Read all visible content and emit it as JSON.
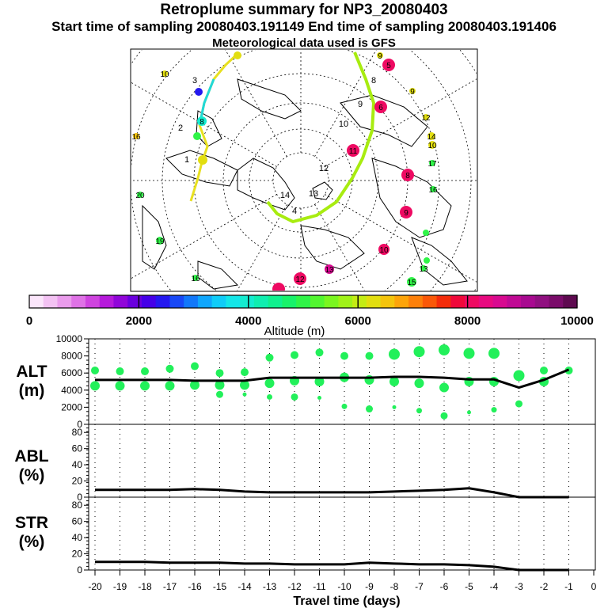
{
  "header": {
    "title": "Retroplume summary for NP3_20080403",
    "subtitle": "Start time of sampling 20080403.191149     End time of sampling 20080403.191406",
    "meteo": "Meteorological data used is GFS"
  },
  "colorbar": {
    "label": "Altitude (m)",
    "tick_labels": [
      "0",
      "2000",
      "4000",
      "6000",
      "8000",
      "10000"
    ],
    "range": [
      0,
      10000
    ],
    "colors": [
      "#fbe6fb",
      "#f3c2f3",
      "#ea9cec",
      "#df72e6",
      "#cf44df",
      "#b61adb",
      "#9106d9",
      "#6a00de",
      "#4500e8",
      "#2418f0",
      "#1848f6",
      "#1278fa",
      "#10a6fc",
      "#10ccf8",
      "#14e6e8",
      "#14ecd0",
      "#10eeb0",
      "#10f08e",
      "#18f26a",
      "#30f448",
      "#52f630",
      "#7af620",
      "#a0f218",
      "#c4ec14",
      "#e2de10",
      "#f4c40c",
      "#fca40a",
      "#fc800a",
      "#fa5808",
      "#f42c0a",
      "#f0083a",
      "#ee0a62",
      "#e80a80",
      "#d80a90",
      "#c00a94",
      "#a80a90",
      "#901080",
      "#7a0c6a",
      "#5e0a50"
    ]
  },
  "map": {
    "day_labels": [
      "1",
      "2",
      "3",
      "4",
      "5",
      "6",
      "7",
      "8",
      "9",
      "10",
      "11",
      "12",
      "13",
      "14",
      "15",
      "16",
      "17",
      "18",
      "19",
      "20"
    ],
    "trajectory_days": [
      "1",
      "2",
      "3",
      "4",
      "5",
      "6",
      "8",
      "9",
      "10",
      "11",
      "12",
      "13",
      "14"
    ]
  },
  "panels": {
    "alt": {
      "label": "ALT",
      "unit": "(m)",
      "ylim": [
        0,
        10000
      ],
      "yticks": [
        "0",
        "2000",
        "4000",
        "6000",
        "8000",
        "10000"
      ]
    },
    "abl": {
      "label": "ABL",
      "unit": "(%)",
      "ylim": [
        0,
        90
      ],
      "yticks": [
        "0",
        "20",
        "40",
        "60",
        "80"
      ]
    },
    "str": {
      "label": "STR",
      "unit": "(%)",
      "ylim": [
        0,
        90
      ],
      "yticks": [
        "0",
        "20",
        "40",
        "60",
        "80"
      ]
    }
  },
  "xaxis": {
    "label": "Travel time (days)",
    "ticks": [
      "-20",
      "-19",
      "-18",
      "-17",
      "-16",
      "-15",
      "-14",
      "-13",
      "-12",
      "-11",
      "-10",
      "-9",
      "-8",
      "-7",
      "-6",
      "-5",
      "-4",
      "-3",
      "-2",
      "-1",
      "0"
    ]
  },
  "chart_data": {
    "type": "line",
    "title": "Retroplume summary for NP3_20080403",
    "x": [
      -20,
      -19,
      -18,
      -17,
      -16,
      -15,
      -14,
      -13,
      -12,
      -11,
      -10,
      -9,
      -8,
      -7,
      -6,
      -5,
      -4,
      -3,
      -2,
      -1
    ],
    "series": [
      {
        "name": "ALT mean (m)",
        "values": [
          5200,
          5200,
          5200,
          5200,
          5100,
          5100,
          5100,
          5450,
          5450,
          5450,
          5450,
          5450,
          5550,
          5550,
          5450,
          5250,
          5250,
          4300,
          5200,
          6400
        ]
      },
      {
        "name": "ABL (%)",
        "values": [
          9,
          9,
          9,
          9,
          10,
          9,
          7,
          6,
          6,
          6,
          6,
          6,
          7,
          8,
          9,
          11,
          6,
          0,
          0,
          0
        ]
      },
      {
        "name": "STR (%)",
        "values": [
          10,
          10,
          10,
          9,
          9,
          9,
          8,
          8,
          7,
          7,
          7,
          9,
          8,
          7,
          7,
          6,
          4,
          0,
          0,
          0
        ]
      }
    ],
    "alt_clusters": {
      "days": [
        -20,
        -19,
        -18,
        -17,
        -16,
        -15,
        -14,
        -13,
        -12,
        -11,
        -10,
        -9,
        -8,
        -7,
        -6,
        -5,
        -4,
        -3,
        -2,
        -1
      ],
      "upper": [
        6300,
        6200,
        6200,
        6500,
        6800,
        6000,
        6100,
        7800,
        8100,
        8400,
        8000,
        8000,
        8200,
        8500,
        8700,
        8300,
        8300,
        5700,
        6300,
        6300
      ],
      "lower": [
        4500,
        4500,
        4500,
        4500,
        4600,
        4600,
        4600,
        4800,
        5100,
        5000,
        5500,
        5200,
        5000,
        4800,
        4300,
        5000,
        5000,
        null,
        5000,
        null
      ],
      "low": [
        null,
        null,
        null,
        null,
        null,
        3500,
        3500,
        3200,
        3200,
        3100,
        2100,
        1800,
        2000,
        1600,
        1000,
        1400,
        1700,
        2400,
        null,
        null
      ]
    },
    "xlim": [
      -20,
      0
    ],
    "xlabel": "Travel time (days)"
  }
}
